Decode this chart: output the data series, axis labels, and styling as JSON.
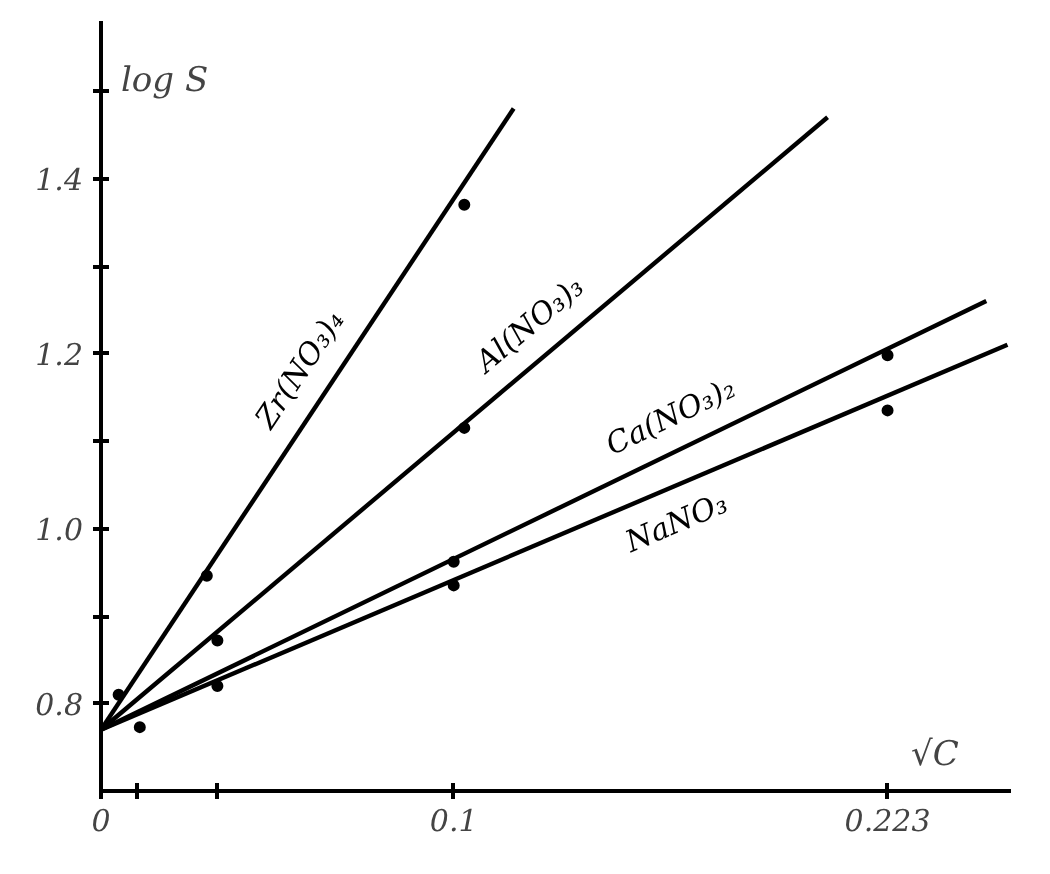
{
  "chart_data": {
    "type": "line",
    "xlabel": "√C",
    "ylabel": "log S",
    "xlim": [
      0,
      0.258
    ],
    "ylim": [
      0.7,
      1.58
    ],
    "xticks": [
      0,
      {
        "value": 0.01,
        "label": null
      },
      {
        "value": 0.033,
        "label": null
      },
      0.1,
      0.223
    ],
    "yticks": [
      0.8,
      {
        "value": 0.9,
        "label": null
      },
      {
        "value": 1.0,
        "label": "1.0"
      },
      {
        "value": 1.1,
        "label": null
      },
      1.2,
      {
        "value": 1.3,
        "label": null
      },
      1.4,
      {
        "value": 1.5,
        "label": null
      }
    ],
    "grid": false,
    "series": [
      {
        "name": "Zr(NO₃)₄",
        "color": "#000000",
        "x": [
          0,
          0.117
        ],
        "values": [
          0.77,
          1.48
        ]
      },
      {
        "name": "Al(NO₃)₃",
        "color": "#000000",
        "x": [
          0,
          0.206
        ],
        "values": [
          0.77,
          1.47
        ]
      },
      {
        "name": "Ca(NO₃)₂",
        "color": "#000000",
        "x": [
          0,
          0.251
        ],
        "values": [
          0.77,
          1.26
        ]
      },
      {
        "name": "NaNO₃",
        "color": "#000000",
        "x": [
          0,
          0.257
        ],
        "values": [
          0.77,
          1.21
        ]
      },
      {
        "type": "scatter",
        "marker": "circle",
        "color": "#000000",
        "x": [
          0.005,
          0.03,
          0.103
        ],
        "values": [
          0.81,
          0.946,
          1.37
        ]
      },
      {
        "type": "scatter",
        "marker": "circle",
        "color": "#000000",
        "x": [
          0.033,
          0.103
        ],
        "values": [
          0.872,
          1.115
        ]
      },
      {
        "type": "scatter",
        "marker": "circle",
        "color": "#000000",
        "x": [
          0.033,
          0.1,
          0.223
        ],
        "values": [
          0.82,
          0.962,
          1.198
        ]
      },
      {
        "type": "scatter",
        "marker": "circle",
        "color": "#000000",
        "x": [
          0.011,
          0.1,
          0.223
        ],
        "values": [
          0.773,
          0.935,
          1.135
        ]
      }
    ]
  }
}
